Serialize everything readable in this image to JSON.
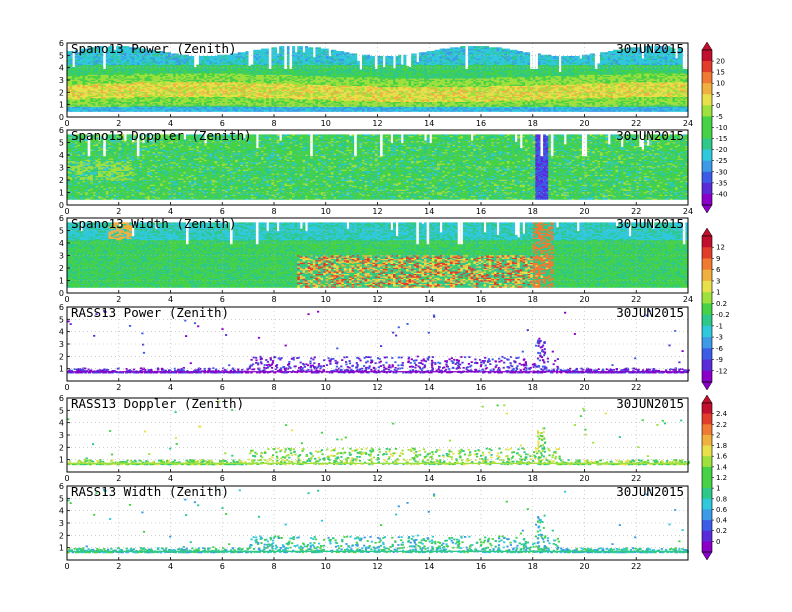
{
  "date_label": "30JUN2015",
  "colors": {
    "rainbow": [
      "#8a00c8",
      "#5a2bd8",
      "#3c5ce8",
      "#3c9ae6",
      "#30c8dc",
      "#2ec88a",
      "#46d246",
      "#9ee03c",
      "#e8e04a",
      "#f0b040",
      "#f07a32",
      "#e23c2a",
      "#c0102e"
    ],
    "background_green": "#46d246",
    "grid": "#b4b4b4"
  },
  "chart_data": [
    {
      "type": "heatmap",
      "title": "Spano13 Power (Zenith)",
      "date": "30JUN2015",
      "x_ticks": [
        0,
        2,
        4,
        6,
        8,
        10,
        12,
        14,
        16,
        18,
        20,
        22,
        24
      ],
      "y_ticks": [
        0,
        1,
        2,
        3,
        4,
        5,
        6
      ],
      "xlim": [
        0,
        24
      ],
      "ylim": [
        0,
        6
      ],
      "colorbar_group": "power",
      "band_center_km": [
        [
          0,
          1.8
        ],
        [
          6,
          2.0
        ],
        [
          12,
          2.2
        ],
        [
          16,
          2.0
        ],
        [
          20,
          2.2
        ],
        [
          24,
          2.0
        ]
      ],
      "band_halfwidth_km": 1.2,
      "low_signal_floor_km": 0.5
    },
    {
      "type": "heatmap",
      "title": "Spano13 Doppler (Zenith)",
      "date": "30JUN2015",
      "x_ticks": [
        0,
        2,
        4,
        6,
        8,
        10,
        12,
        14,
        16,
        18,
        20,
        22,
        24
      ],
      "y_ticks": [
        0,
        1,
        2,
        3,
        4,
        5,
        6
      ],
      "xlim": [
        0,
        24
      ],
      "ylim": [
        0,
        6
      ],
      "colorbar_group": "power",
      "feature": "negative doppler column near 18.3 h"
    },
    {
      "type": "heatmap",
      "title": "Spano13 Width (Zenith)",
      "date": "30JUN2015",
      "x_ticks": [
        0,
        2,
        4,
        6,
        8,
        10,
        12,
        14,
        16,
        18,
        20,
        22,
        24
      ],
      "y_ticks": [
        0,
        1,
        2,
        3,
        4,
        5,
        6
      ],
      "xlim": [
        0,
        24
      ],
      "ylim": [
        0,
        6
      ],
      "colorbar_group": "width",
      "feature": "high spectral width below 3 km between 9 h and 18.5 h"
    },
    {
      "type": "scatter",
      "title": "RASS13 Power (Zenith)",
      "date": "30JUN2015",
      "x_ticks": [
        0,
        2,
        4,
        6,
        8,
        10,
        12,
        14,
        16,
        18,
        20,
        22
      ],
      "y_ticks": [
        1,
        2,
        3,
        4,
        5,
        6
      ],
      "xlim": [
        0,
        24
      ],
      "ylim": [
        0,
        6
      ],
      "colorbar_group": "rass_power",
      "baseline_km": 0.75,
      "activity_window_h": [
        7,
        19
      ],
      "spike_h": 18.3
    },
    {
      "type": "scatter",
      "title": "RASS13 Doppler (Zenith)",
      "date": "30JUN2015",
      "x_ticks": [
        0,
        2,
        4,
        6,
        8,
        10,
        12,
        14,
        16,
        18,
        20,
        22
      ],
      "y_ticks": [
        1,
        2,
        3,
        4,
        5,
        6
      ],
      "xlim": [
        0,
        24
      ],
      "ylim": [
        0,
        6
      ],
      "colorbar_group": "rass_doppler",
      "baseline_km": 0.7,
      "activity_window_h": [
        7,
        19
      ],
      "spike_h": 18.3
    },
    {
      "type": "scatter",
      "title": "RASS13 Width (Zenith)",
      "date": "30JUN2015",
      "x_ticks": [
        0,
        2,
        4,
        6,
        8,
        10,
        12,
        14,
        16,
        18,
        20,
        22
      ],
      "y_ticks": [
        1,
        2,
        3,
        4,
        5,
        6
      ],
      "xlim": [
        0,
        24
      ],
      "ylim": [
        0,
        6
      ],
      "colorbar_group": "rass_doppler",
      "baseline_km": 0.7,
      "activity_window_h": [
        7,
        19
      ],
      "spike_h": 18.3
    }
  ],
  "colorbars": [
    {
      "id": "power",
      "labels": [
        "20",
        "15",
        "10",
        "5",
        "0",
        "-5",
        "-10",
        "-15",
        "-20",
        "-25",
        "-30",
        "-35",
        "-40"
      ]
    },
    {
      "id": "width",
      "labels": [
        "12",
        "9",
        "6",
        "3",
        "1",
        "0.2",
        "-0.2",
        "-1",
        "-3",
        "-6",
        "-9",
        "-12"
      ]
    },
    {
      "id": "rass",
      "labels": [
        "2.4",
        "2.2",
        "2",
        "1.8",
        "1.6",
        "1.4",
        "1.2",
        "1",
        "0.8",
        "0.6",
        "0.4",
        "0.2",
        "0"
      ]
    }
  ]
}
